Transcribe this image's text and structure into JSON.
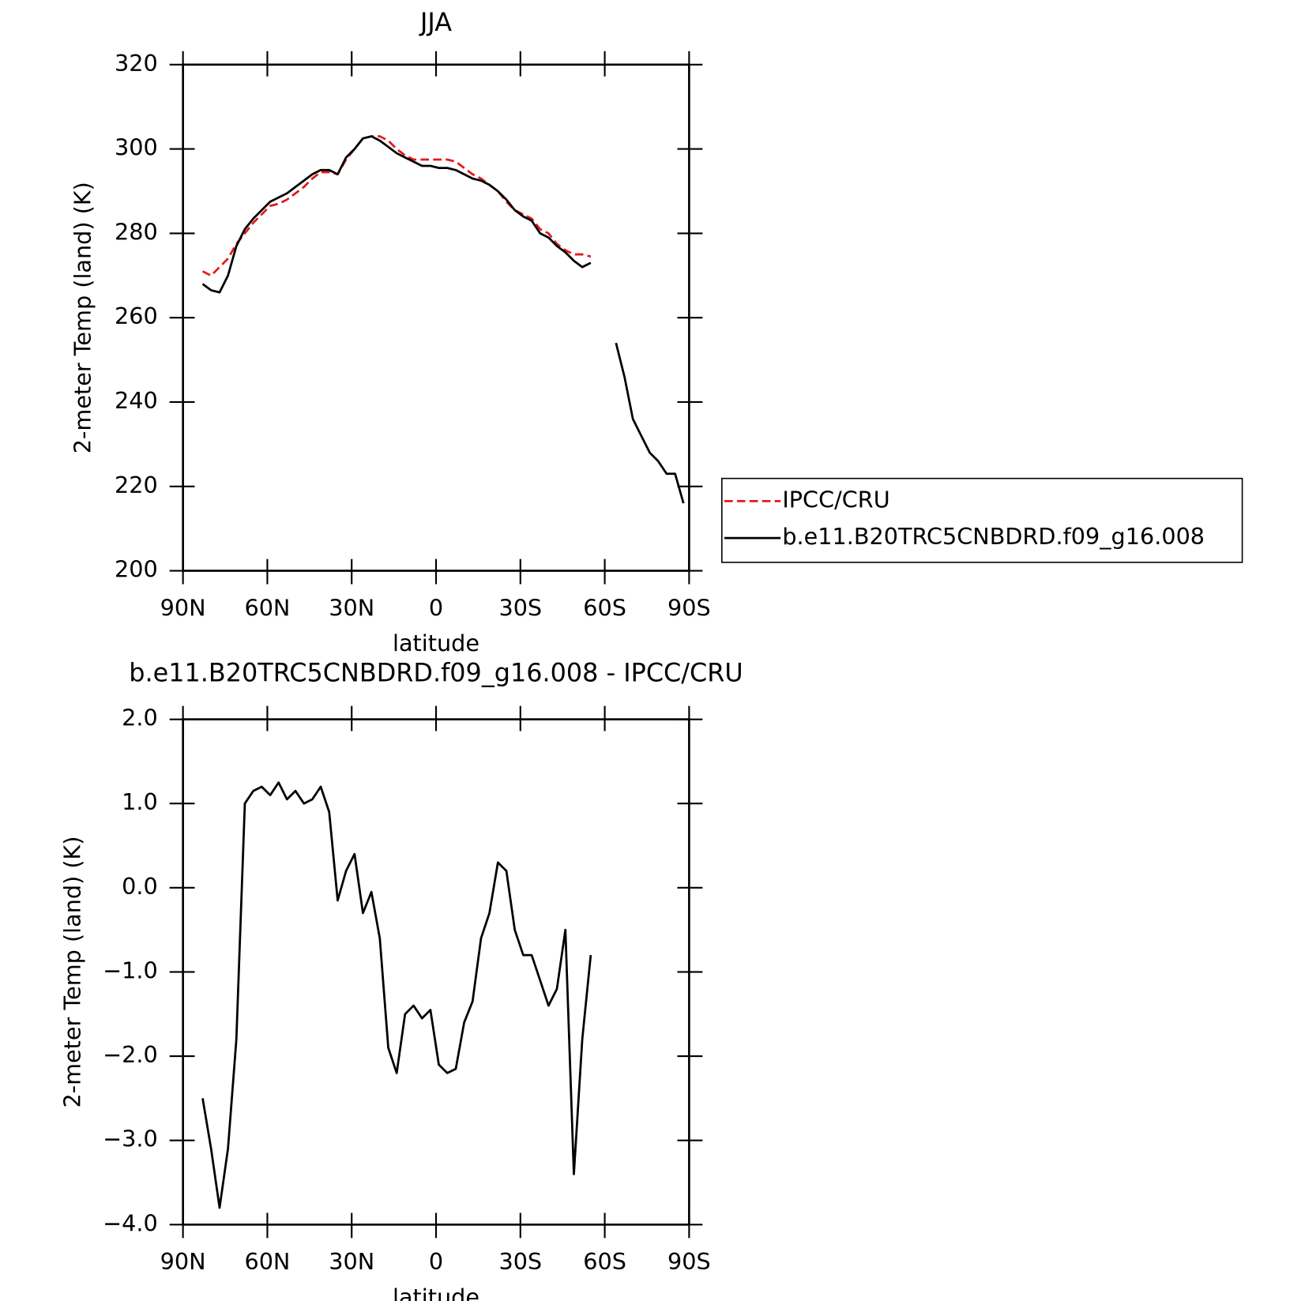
{
  "chart_data": [
    {
      "type": "line",
      "title": "JJA",
      "xlabel": "latitude",
      "ylabel": "2-meter Temp (land) (K)",
      "x": [
        83,
        80,
        77,
        74,
        71,
        68,
        65,
        62,
        59,
        56,
        53,
        50,
        47,
        44,
        41,
        38,
        35,
        32,
        29,
        26,
        23,
        20,
        17,
        14,
        11,
        8,
        5,
        2,
        -1,
        -4,
        -7,
        -10,
        -13,
        -16,
        -19,
        -22,
        -25,
        -28,
        -31,
        -34,
        -37,
        -40,
        -43,
        -46,
        -49,
        -52,
        -55,
        -58,
        -61,
        -64,
        -67,
        -70,
        -73,
        -76,
        -79,
        -82,
        -85,
        -88
      ],
      "series": [
        {
          "name": "IPCC/CRU",
          "color": "#e41a1c",
          "dashed": true,
          "values": [
            271,
            270,
            272,
            274,
            277.5,
            280,
            282.5,
            284.5,
            286.5,
            287,
            288,
            289.5,
            291,
            293,
            294.5,
            294.5,
            294,
            297.5,
            300,
            302.5,
            303,
            303,
            302,
            300,
            298.5,
            297.5,
            297.5,
            297.5,
            297.5,
            297.5,
            297,
            295.5,
            294,
            293,
            291.5,
            290,
            287.5,
            285.5,
            284.5,
            283.5,
            281,
            280,
            277.5,
            276,
            275,
            275,
            274.5,
            null,
            null,
            null,
            null,
            null,
            null,
            null,
            null,
            null,
            null,
            null
          ]
        },
        {
          "name": "b.e11.B20TRC5CNBDRD.f09_g16.008",
          "color": "#000000",
          "dashed": false,
          "values": [
            268,
            266.5,
            266,
            270,
            277,
            281,
            283.5,
            285.5,
            287.5,
            288.5,
            289.5,
            291,
            292.5,
            294,
            295,
            295,
            294,
            298,
            300,
            302.5,
            303,
            302,
            300.5,
            299,
            298,
            297,
            296,
            296,
            295.5,
            295.5,
            295,
            294,
            293,
            292.5,
            291.5,
            290,
            288,
            285.5,
            284,
            283,
            280,
            279,
            277,
            275.5,
            273.5,
            272,
            273,
            null,
            null,
            254,
            246,
            236,
            232,
            228,
            226,
            223,
            223,
            216
          ]
        }
      ],
      "xlim": [
        90,
        -90
      ],
      "xticks": [
        {
          "value": 90,
          "label": "90N"
        },
        {
          "value": 60,
          "label": "60N"
        },
        {
          "value": 30,
          "label": "30N"
        },
        0,
        {
          "value": -30,
          "label": "30S"
        },
        {
          "value": -60,
          "label": "60S"
        },
        {
          "value": -90,
          "label": "90S"
        }
      ],
      "ylim": [
        200,
        320
      ],
      "yticks": [
        200,
        220,
        240,
        260,
        280,
        300,
        320
      ],
      "legend": "right"
    },
    {
      "type": "line",
      "title": "b.e11.B20TRC5CNBDRD.f09_g16.008 - IPCC/CRU",
      "xlabel": "latitude",
      "ylabel": "2-meter Temp (land) (K)",
      "x": [
        83,
        80,
        77,
        74,
        71,
        68,
        65,
        62,
        59,
        56,
        53,
        50,
        47,
        44,
        41,
        38,
        35,
        32,
        29,
        26,
        23,
        20,
        17,
        14,
        11,
        8,
        5,
        2,
        -1,
        -4,
        -7,
        -10,
        -13,
        -16,
        -19,
        -22,
        -25,
        -28,
        -31,
        -34,
        -37,
        -40,
        -43,
        -46,
        -49,
        -52,
        -55
      ],
      "color": "#000000",
      "values": [
        -2.5,
        -3.1,
        -3.8,
        -3.1,
        -1.8,
        1.0,
        1.15,
        1.2,
        1.1,
        1.25,
        1.05,
        1.15,
        1.0,
        1.05,
        1.2,
        0.9,
        -0.15,
        0.2,
        0.4,
        -0.3,
        -0.05,
        -0.6,
        -1.9,
        -2.2,
        -1.5,
        -1.4,
        -1.55,
        -1.45,
        -2.1,
        -2.2,
        -2.15,
        -1.6,
        -1.35,
        -0.6,
        -0.3,
        0.3,
        0.2,
        -0.5,
        -0.8,
        -0.8,
        -1.1,
        -1.4,
        -1.2,
        -0.5,
        -3.4,
        -1.8,
        -0.8
      ],
      "xlim": [
        90,
        -90
      ],
      "xticks": [
        {
          "value": 90,
          "label": "90N"
        },
        {
          "value": 60,
          "label": "60N"
        },
        {
          "value": 30,
          "label": "30N"
        },
        0,
        {
          "value": -30,
          "label": "30S"
        },
        {
          "value": -60,
          "label": "60S"
        },
        {
          "value": -90,
          "label": "90S"
        }
      ],
      "ylim": [
        -4,
        2
      ],
      "yticks": [
        {
          "value": -4,
          "label": "−4.0"
        },
        {
          "value": -3,
          "label": "−3.0"
        },
        {
          "value": -2,
          "label": "−2.0"
        },
        {
          "value": -1,
          "label": "−1.0"
        },
        {
          "value": 0,
          "label": "0.0"
        },
        {
          "value": 1,
          "label": "1.0"
        },
        {
          "value": 2,
          "label": "2.0"
        }
      ]
    }
  ]
}
